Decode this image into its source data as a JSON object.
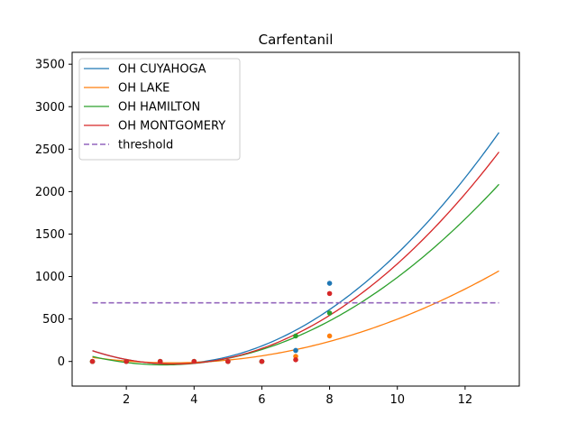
{
  "chart_data": {
    "type": "line",
    "title": "Carfentanil",
    "xlabel": "",
    "ylabel": "",
    "xlim": [
      0.4,
      13.6
    ],
    "ylim": [
      -290,
      3640
    ],
    "xticks": [
      2,
      4,
      6,
      8,
      10,
      12
    ],
    "yticks": [
      0,
      500,
      1000,
      1500,
      2000,
      2500,
      3000,
      3500
    ],
    "grid": false,
    "legend": "top-left",
    "fit_x_range": [
      1,
      13
    ],
    "series": [
      {
        "name": "OH CUYAHOGA",
        "color": "#1f77b4",
        "fit_coeffs": [
          290.1,
          -191.9,
          29.0
        ],
        "points": [
          [
            1,
            0
          ],
          [
            2,
            0
          ],
          [
            3,
            0
          ],
          [
            4,
            0
          ],
          [
            5,
            0
          ],
          [
            6,
            0
          ],
          [
            7,
            130
          ],
          [
            8,
            920
          ]
        ]
      },
      {
        "name": "OH LAKE",
        "color": "#ff7f0e",
        "fit_coeffs": [
          114.1,
          -77.6,
          11.6
        ],
        "points": [
          [
            1,
            0
          ],
          [
            2,
            0
          ],
          [
            3,
            0
          ],
          [
            4,
            0
          ],
          [
            5,
            0
          ],
          [
            6,
            0
          ],
          [
            7,
            60
          ],
          [
            8,
            300
          ]
        ]
      },
      {
        "name": "OH HAMILTON",
        "color": "#2ca02c",
        "fit_coeffs": [
          173.2,
          -136.3,
          21.8
        ],
        "points": [
          [
            1,
            0
          ],
          [
            2,
            0
          ],
          [
            3,
            0
          ],
          [
            4,
            0
          ],
          [
            5,
            0
          ],
          [
            6,
            0
          ],
          [
            7,
            300
          ],
          [
            8,
            570
          ]
        ]
      },
      {
        "name": "OH MONTGOMERY",
        "color": "#d62728",
        "fit_coeffs": [
          283.7,
          -184.4,
          27.1
        ],
        "points": [
          [
            1,
            0
          ],
          [
            2,
            0
          ],
          [
            3,
            0
          ],
          [
            4,
            0
          ],
          [
            5,
            0
          ],
          [
            6,
            0
          ],
          [
            7,
            20
          ],
          [
            8,
            800
          ]
        ]
      }
    ],
    "threshold": {
      "name": "threshold",
      "value": 690,
      "color": "#9467bd",
      "style": "dashed",
      "x_range": [
        1,
        13
      ]
    }
  }
}
